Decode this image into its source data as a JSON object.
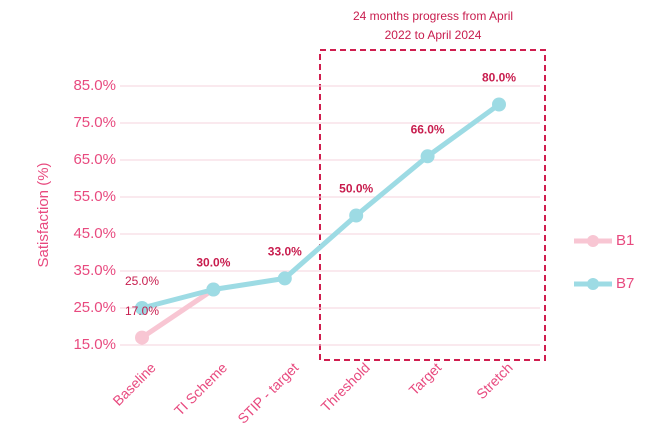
{
  "chart_data": {
    "type": "line",
    "annotation": [
      "24 months progress from April",
      "2022 to April 2024"
    ],
    "y_label": "Satisfaction (%)",
    "categories": [
      "Baseline",
      "TI Scheme",
      "STIP - target",
      "Threshold",
      "Target",
      "Stretch"
    ],
    "series": [
      {
        "name": "B1",
        "color": "#f8c6d3",
        "values": [
          17,
          30,
          null,
          null,
          null,
          null
        ],
        "value_labels": [
          "17.0%",
          null,
          null,
          null,
          null,
          null
        ]
      },
      {
        "name": "B7",
        "color": "#9ddbe4",
        "values": [
          25,
          30,
          33,
          50,
          66,
          80
        ],
        "value_labels": [
          "25.0%",
          "30.0%",
          "33.0%",
          "50.0%",
          "66.0%",
          "80.0%"
        ]
      }
    ],
    "ylim": [
      15,
      85
    ],
    "yticks": [
      {
        "value": 15,
        "label": "15.0%"
      },
      {
        "value": 25,
        "label": "25.0%"
      },
      {
        "value": 35,
        "label": "35.0%"
      },
      {
        "value": 45,
        "label": "45.0%"
      },
      {
        "value": 55,
        "label": "55.0%"
      },
      {
        "value": 65,
        "label": "65.0%"
      },
      {
        "value": 75,
        "label": "75.0%"
      },
      {
        "value": 85,
        "label": "85.0%"
      }
    ],
    "grid": true,
    "legend": "right"
  }
}
